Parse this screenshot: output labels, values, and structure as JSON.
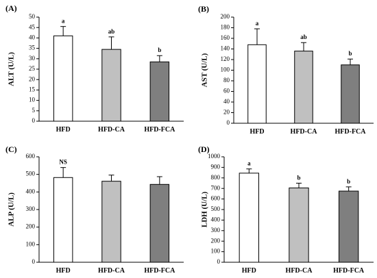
{
  "chart_data": [
    {
      "type": "bar",
      "panel": "(A)",
      "ylabel": "ALT (U/L)",
      "categories": [
        "HFD",
        "HFD-CA",
        "HFD-FCA"
      ],
      "values": [
        41,
        34.5,
        28.5
      ],
      "errors": [
        4.5,
        6,
        3
      ],
      "labels": [
        "a",
        "ab",
        "b"
      ],
      "ylim": [
        0,
        50
      ],
      "yticks": [
        0,
        5,
        10,
        15,
        20,
        25,
        30,
        35,
        40,
        45,
        50
      ],
      "colors": [
        "#ffffff",
        "#c0c0c0",
        "#7f7f7f"
      ]
    },
    {
      "type": "bar",
      "panel": "(B)",
      "ylabel": "AST (U/L)",
      "categories": [
        "HFD",
        "HFD-CA",
        "HFD-FCA"
      ],
      "values": [
        148,
        136,
        110
      ],
      "errors": [
        30,
        16,
        11
      ],
      "labels": [
        "a",
        "ab",
        "b"
      ],
      "ylim": [
        0,
        200
      ],
      "yticks": [
        0,
        20,
        40,
        60,
        80,
        100,
        120,
        140,
        160,
        180,
        200
      ],
      "colors": [
        "#ffffff",
        "#c0c0c0",
        "#7f7f7f"
      ]
    },
    {
      "type": "bar",
      "panel": "(C)",
      "ylabel": "ALP (U/L)",
      "categories": [
        "HFD",
        "HFD-CA",
        "HFD-FCA"
      ],
      "values": [
        482,
        461,
        443
      ],
      "errors": [
        57,
        35,
        44
      ],
      "labels": [
        "NS",
        "",
        ""
      ],
      "ylim": [
        0,
        600
      ],
      "yticks": [
        0,
        100,
        200,
        300,
        400,
        500,
        600
      ],
      "colors": [
        "#ffffff",
        "#c0c0c0",
        "#7f7f7f"
      ]
    },
    {
      "type": "bar",
      "panel": "(D)",
      "ylabel": "LDH (U/L)",
      "categories": [
        "HFD",
        "HFD-CA",
        "HFD-FCA"
      ],
      "values": [
        845,
        705,
        675
      ],
      "errors": [
        40,
        45,
        40
      ],
      "labels": [
        "a",
        "b",
        "b"
      ],
      "ylim": [
        0,
        1000
      ],
      "yticks": [
        0,
        100,
        200,
        300,
        400,
        500,
        600,
        700,
        800,
        900,
        1000
      ],
      "colors": [
        "#ffffff",
        "#c0c0c0",
        "#7f7f7f"
      ]
    }
  ]
}
